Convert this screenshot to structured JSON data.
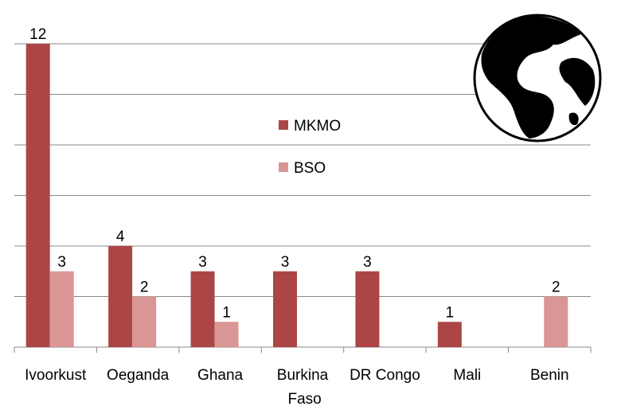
{
  "chart_data": {
    "type": "bar",
    "categories": [
      "Ivoorkust",
      "Oeganda",
      "Ghana",
      "Burkina Faso",
      "DR Congo",
      "Mali",
      "Benin"
    ],
    "series": [
      {
        "name": "MKMO",
        "color": "#ac4646",
        "values": [
          12,
          4,
          3,
          3,
          3,
          1,
          null
        ]
      },
      {
        "name": "BSO",
        "color": "#d99694",
        "values": [
          3,
          2,
          1,
          null,
          null,
          null,
          2
        ]
      }
    ],
    "ylim": [
      0,
      12
    ],
    "yticks": [
      0,
      2,
      4,
      6,
      8,
      10,
      12
    ],
    "grid": true
  }
}
